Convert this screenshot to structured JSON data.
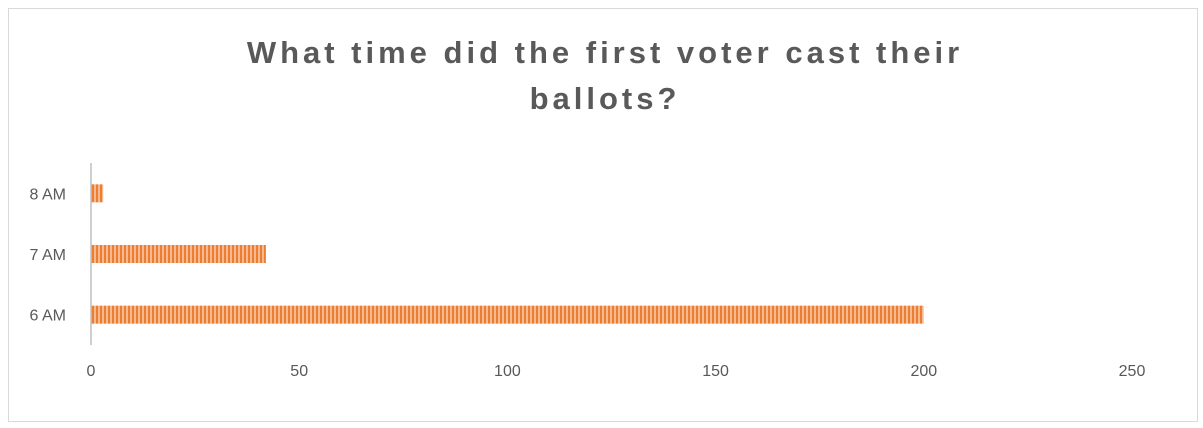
{
  "chart_data": {
    "type": "bar",
    "orientation": "horizontal",
    "title": "What time did the first voter cast their\nballots?",
    "categories": [
      "6 AM",
      "7 AM",
      "8 AM"
    ],
    "values": [
      200,
      42,
      3
    ],
    "xlabel": "",
    "ylabel": "",
    "xlim": [
      0,
      250
    ],
    "xticks": [
      0,
      50,
      100,
      150,
      200,
      250
    ],
    "grid": false,
    "legend": "none",
    "bar_color": "#ed7d31",
    "bar_stripe_color": "#fbe3d2",
    "axis_color": "#bfbfbf"
  }
}
